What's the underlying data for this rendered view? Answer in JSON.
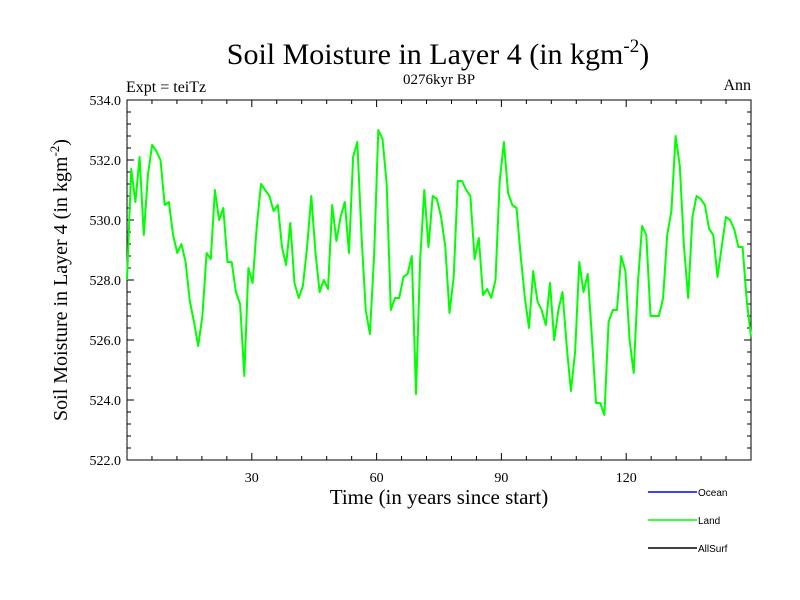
{
  "chart_data": {
    "type": "line",
    "title": "Soil Moisture in Layer 4 (in kgm",
    "title_sup": "-2",
    "title_close": ")",
    "subtitle_left": "Expt = teiTz",
    "subtitle_center": "0276kyr BP",
    "subtitle_right": "Ann",
    "xlabel": "Time (in years since start)",
    "ylabel": "Soil Moisture in Layer 4 (in kgm",
    "ylabel_sup": "-2",
    "ylabel_close": ")",
    "xlim": [
      0,
      150
    ],
    "ylim": [
      522.0,
      534.0
    ],
    "x_ticks": [
      30,
      60,
      90,
      120
    ],
    "x_tick_labels": [
      "30",
      "60",
      "90",
      "120"
    ],
    "y_ticks": [
      522,
      524,
      526,
      528,
      530,
      532,
      534
    ],
    "y_tick_labels": [
      "522.0",
      "524.0",
      "526.0",
      "528.0",
      "530.0",
      "532.0",
      "534.0"
    ],
    "legend": [
      {
        "name": "Ocean",
        "color": "#0000ff"
      },
      {
        "name": "Land",
        "color": "#00ff00"
      },
      {
        "name": "AllSurf",
        "color": "#000000"
      }
    ],
    "series": [
      {
        "name": "Land",
        "color": "#00ff00",
        "values": [
          528.0,
          531.7,
          530.6,
          532.1,
          529.5,
          531.5,
          532.5,
          532.3,
          532.0,
          530.5,
          530.6,
          529.5,
          528.9,
          529.2,
          528.6,
          527.3,
          526.6,
          525.8,
          526.8,
          528.9,
          528.7,
          531.0,
          530.0,
          530.4,
          528.6,
          528.6,
          527.6,
          527.2,
          524.8,
          528.4,
          527.9,
          529.8,
          531.2,
          531.0,
          530.8,
          530.3,
          530.5,
          529.1,
          528.5,
          529.9,
          527.9,
          527.4,
          527.8,
          529.1,
          530.8,
          528.9,
          527.6,
          528.0,
          527.7,
          530.5,
          529.3,
          530.1,
          530.6,
          528.9,
          532.1,
          532.6,
          529.5,
          527.0,
          526.2,
          528.8,
          533.0,
          532.7,
          531.2,
          527.0,
          527.4,
          527.4,
          528.1,
          528.2,
          528.8,
          524.2,
          528.7,
          531.0,
          529.1,
          530.8,
          530.7,
          530.1,
          529.1,
          526.9,
          528.1,
          531.3,
          531.3,
          531.0,
          530.8,
          528.7,
          529.4,
          527.5,
          527.7,
          527.4,
          528.0,
          531.3,
          532.6,
          530.9,
          530.5,
          530.4,
          528.8,
          527.4,
          526.4,
          528.3,
          527.3,
          527.0,
          526.5,
          527.9,
          526.0,
          527.0,
          527.6,
          525.8,
          524.3,
          525.6,
          528.6,
          527.6,
          528.2,
          526.1,
          523.9,
          523.9,
          523.5,
          526.6,
          527.0,
          527.0,
          528.8,
          528.3,
          526.0,
          524.9,
          527.9,
          529.8,
          529.5,
          526.8,
          526.8,
          526.8,
          527.4,
          529.5,
          530.3,
          532.8,
          531.8,
          529.1,
          527.4,
          530.1,
          530.8,
          530.7,
          530.5,
          529.7,
          529.5,
          528.1,
          529.1,
          530.1,
          530.0,
          529.7,
          529.1,
          529.1,
          527.3,
          526.1
        ]
      }
    ]
  }
}
